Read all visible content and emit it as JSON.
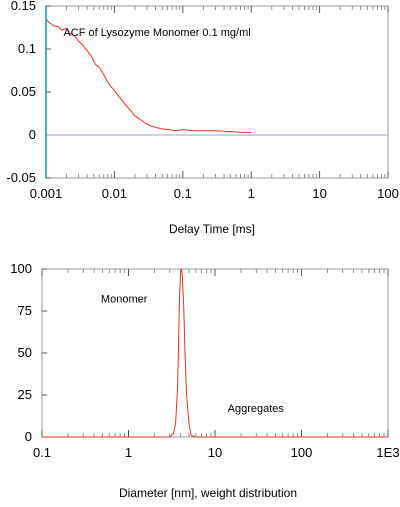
{
  "chart_data": [
    {
      "type": "line",
      "title": "",
      "xlabel": "Delay Time [ms]",
      "ylabel": "",
      "x_scale": "log",
      "xlim": [
        0.001,
        100
      ],
      "ylim": [
        -0.05,
        0.15
      ],
      "grid": false,
      "x_tick_values": [
        0.001,
        0.01,
        0.1,
        1,
        10,
        100
      ],
      "x_tick_labels": [
        "0.001",
        "0.01",
        "0.1",
        "1",
        "10",
        "100"
      ],
      "y_tick_values": [
        0.15,
        0.1,
        0.05,
        0,
        -0.05
      ],
      "y_tick_labels": [
        "0.15",
        "0.1",
        "0.05",
        "0",
        "-0.05"
      ],
      "baseline": 0,
      "annotations": [
        {
          "text": "ACF of Lysozyme Monomer 0.1 mg/ml",
          "x": 0.0018,
          "y": 0.115
        }
      ],
      "series": [
        {
          "color": "#e8312a",
          "x": [
            0.001,
            0.0011,
            0.0013,
            0.0015,
            0.0017,
            0.002,
            0.0022,
            0.0024,
            0.0027,
            0.003,
            0.0034,
            0.0038,
            0.0042,
            0.0047,
            0.0053,
            0.006,
            0.0068,
            0.0077,
            0.0087,
            0.01,
            0.0115,
            0.013,
            0.015,
            0.0175,
            0.02,
            0.024,
            0.028,
            0.033,
            0.04,
            0.05,
            0.065,
            0.08,
            0.1,
            0.15,
            0.2,
            0.3,
            0.5,
            0.7,
            1.0
          ],
          "y": [
            0.135,
            0.131,
            0.127,
            0.126,
            0.122,
            0.124,
            0.118,
            0.117,
            0.114,
            0.109,
            0.105,
            0.1,
            0.096,
            0.09,
            0.082,
            0.079,
            0.072,
            0.064,
            0.057,
            0.052,
            0.045,
            0.04,
            0.034,
            0.028,
            0.022,
            0.018,
            0.014,
            0.011,
            0.009,
            0.007,
            0.006,
            0.005,
            0.006,
            0.005,
            0.005,
            0.005,
            0.004,
            0.003,
            0.003
          ]
        }
      ]
    },
    {
      "type": "line",
      "title": "",
      "xlabel": "Diameter [nm], weight distribution",
      "ylabel": "",
      "x_scale": "log",
      "xlim": [
        0.1,
        1000
      ],
      "ylim": [
        0,
        100
      ],
      "grid": false,
      "x_tick_values": [
        0.1,
        1,
        10,
        100,
        1000
      ],
      "x_tick_labels": [
        "0.1",
        "1",
        "10",
        "100",
        "1E3"
      ],
      "y_tick_values": [
        100,
        75,
        50,
        25,
        0
      ],
      "y_tick_labels": [
        "100",
        "75",
        "50",
        "25",
        "0"
      ],
      "annotations": [
        {
          "text": "Monomer",
          "x": 0.48,
          "y": 80
        },
        {
          "text": "Aggregates",
          "x": 14,
          "y": 15
        }
      ],
      "series": [
        {
          "color": "#e8312a",
          "x": [
            0.1,
            3.0,
            3.3,
            3.5,
            3.7,
            3.8,
            3.9,
            4.0,
            4.1,
            4.2,
            4.35,
            4.5,
            4.7,
            5.0,
            5.3,
            6.0,
            1000
          ],
          "y": [
            0,
            0,
            2,
            8,
            30,
            60,
            85,
            98,
            100,
            95,
            78,
            50,
            25,
            8,
            1,
            0,
            0
          ]
        }
      ]
    }
  ]
}
